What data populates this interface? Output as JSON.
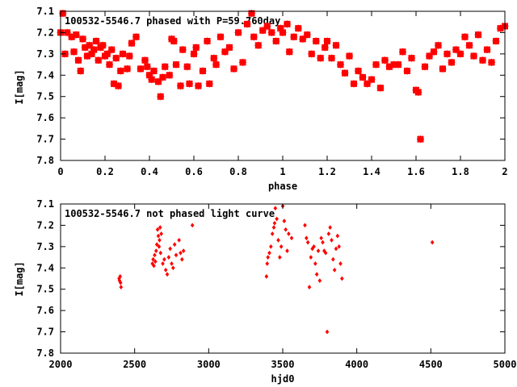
{
  "chart_data": [
    {
      "type": "scatter",
      "title": "100532-5546.7 phased with P=59.760day",
      "xlabel": "phase",
      "ylabel": "I[mag]",
      "xlim": [
        0,
        2
      ],
      "ylim": [
        7.1,
        7.8
      ],
      "y_inverted": true,
      "xticks": [
        "0",
        "0.2",
        "0.4",
        "0.6",
        "0.8",
        "1",
        "1.2",
        "1.4",
        "1.6",
        "1.8",
        "2"
      ],
      "yticks": [
        "7.1",
        "7.2",
        "7.3",
        "7.4",
        "7.5",
        "7.6",
        "7.7",
        "7.8"
      ],
      "marker_color": "#ff0000",
      "marker": "filled-square-star",
      "x": [
        0.0,
        0.01,
        0.02,
        0.03,
        0.05,
        0.06,
        0.07,
        0.08,
        0.09,
        0.1,
        0.11,
        0.12,
        0.13,
        0.14,
        0.15,
        0.16,
        0.17,
        0.18,
        0.19,
        0.2,
        0.21,
        0.22,
        0.23,
        0.24,
        0.25,
        0.26,
        0.27,
        0.28,
        0.3,
        0.31,
        0.32,
        0.34,
        0.36,
        0.38,
        0.39,
        0.4,
        0.41,
        0.42,
        0.44,
        0.45,
        0.46,
        0.47,
        0.49,
        0.5,
        0.51,
        0.52,
        0.54,
        0.55,
        0.57,
        0.58,
        0.6,
        0.61,
        0.62,
        0.64,
        0.66,
        0.67,
        0.69,
        0.7,
        0.72,
        0.74,
        0.76,
        0.78,
        0.8,
        0.82,
        0.84,
        0.86,
        0.87,
        0.89,
        0.91,
        0.93,
        0.95,
        0.97,
        0.99,
        1.0,
        1.02,
        1.03,
        1.05,
        1.07,
        1.09,
        1.11,
        1.13,
        1.15,
        1.17,
        1.19,
        1.2,
        1.22,
        1.24,
        1.26,
        1.28,
        1.3,
        1.32,
        1.34,
        1.36,
        1.38,
        1.4,
        1.42,
        1.44,
        1.46,
        1.48,
        1.5,
        1.52,
        1.54,
        1.56,
        1.58,
        1.6,
        1.61,
        1.62,
        1.64,
        1.66,
        1.68,
        1.7,
        1.72,
        1.74,
        1.76,
        1.78,
        1.8,
        1.82,
        1.84,
        1.86,
        1.88,
        1.9,
        1.92,
        1.94,
        1.96,
        1.98,
        2.0
      ],
      "y": [
        7.2,
        7.11,
        7.3,
        7.2,
        7.22,
        7.29,
        7.21,
        7.33,
        7.38,
        7.23,
        7.27,
        7.31,
        7.26,
        7.3,
        7.28,
        7.24,
        7.33,
        7.27,
        7.26,
        7.31,
        7.3,
        7.35,
        7.28,
        7.44,
        7.32,
        7.45,
        7.38,
        7.3,
        7.37,
        7.31,
        7.25,
        7.22,
        7.37,
        7.33,
        7.36,
        7.4,
        7.42,
        7.38,
        7.43,
        7.5,
        7.41,
        7.36,
        7.4,
        7.23,
        7.24,
        7.35,
        7.45,
        7.28,
        7.36,
        7.44,
        7.3,
        7.27,
        7.45,
        7.38,
        7.24,
        7.44,
        7.32,
        7.35,
        7.22,
        7.29,
        7.27,
        7.37,
        7.2,
        7.34,
        7.16,
        7.11,
        7.22,
        7.26,
        7.19,
        7.17,
        7.2,
        7.24,
        7.18,
        7.2,
        7.16,
        7.29,
        7.22,
        7.18,
        7.23,
        7.21,
        7.3,
        7.24,
        7.32,
        7.27,
        7.24,
        7.32,
        7.26,
        7.35,
        7.39,
        7.31,
        7.44,
        7.38,
        7.41,
        7.44,
        7.42,
        7.35,
        7.46,
        7.33,
        7.36,
        7.35,
        7.35,
        7.29,
        7.38,
        7.32,
        7.47,
        7.48,
        7.7,
        7.36,
        7.31,
        7.29,
        7.26,
        7.37,
        7.3,
        7.34,
        7.28,
        7.3,
        7.22,
        7.26,
        7.31,
        7.21,
        7.33,
        7.28,
        7.34,
        7.24,
        7.18,
        7.17
      ]
    },
    {
      "type": "scatter",
      "title": "100532-5546.7 not phased light curve",
      "xlabel": "hjd0",
      "ylabel": "I[mag]",
      "xlim": [
        2000,
        5000
      ],
      "ylim": [
        7.1,
        7.8
      ],
      "y_inverted": true,
      "xticks": [
        "2000",
        "2500",
        "3000",
        "3500",
        "4000",
        "4500",
        "5000"
      ],
      "yticks": [
        "7.1",
        "7.2",
        "7.3",
        "7.4",
        "7.5",
        "7.6",
        "7.7",
        "7.8"
      ],
      "marker_color": "#ff0000",
      "marker": "small-filled-diamond",
      "x": [
        2395,
        2398,
        2402,
        2405,
        2408,
        2620,
        2625,
        2630,
        2635,
        2640,
        2645,
        2650,
        2655,
        2660,
        2665,
        2668,
        2672,
        2675,
        2680,
        2690,
        2700,
        2710,
        2720,
        2730,
        2740,
        2750,
        2760,
        2770,
        2780,
        2800,
        2810,
        2820,
        2830,
        2890,
        3390,
        3395,
        3400,
        3410,
        3420,
        3430,
        3440,
        3445,
        3450,
        3460,
        3470,
        3480,
        3490,
        3500,
        3510,
        3520,
        3530,
        3540,
        3560,
        3650,
        3660,
        3670,
        3680,
        3690,
        3700,
        3710,
        3720,
        3730,
        3740,
        3750,
        3760,
        3770,
        3780,
        3790,
        3800,
        3810,
        3820,
        3830,
        3840,
        3850,
        3860,
        3870,
        3880,
        3890,
        3900,
        4510
      ],
      "y": [
        7.45,
        7.46,
        7.44,
        7.47,
        7.49,
        7.38,
        7.36,
        7.39,
        7.34,
        7.37,
        7.32,
        7.29,
        7.22,
        7.25,
        7.3,
        7.27,
        7.21,
        7.33,
        7.24,
        7.38,
        7.36,
        7.41,
        7.43,
        7.35,
        7.31,
        7.38,
        7.4,
        7.29,
        7.34,
        7.27,
        7.33,
        7.36,
        7.32,
        7.2,
        7.44,
        7.38,
        7.35,
        7.33,
        7.3,
        7.24,
        7.21,
        7.19,
        7.12,
        7.17,
        7.27,
        7.35,
        7.3,
        7.11,
        7.18,
        7.22,
        7.32,
        7.24,
        7.26,
        7.2,
        7.26,
        7.28,
        7.49,
        7.35,
        7.31,
        7.3,
        7.38,
        7.43,
        7.32,
        7.46,
        7.26,
        7.28,
        7.32,
        7.33,
        7.7,
        7.24,
        7.21,
        7.27,
        7.36,
        7.41,
        7.31,
        7.25,
        7.3,
        7.38,
        7.45,
        7.28
      ]
    }
  ]
}
